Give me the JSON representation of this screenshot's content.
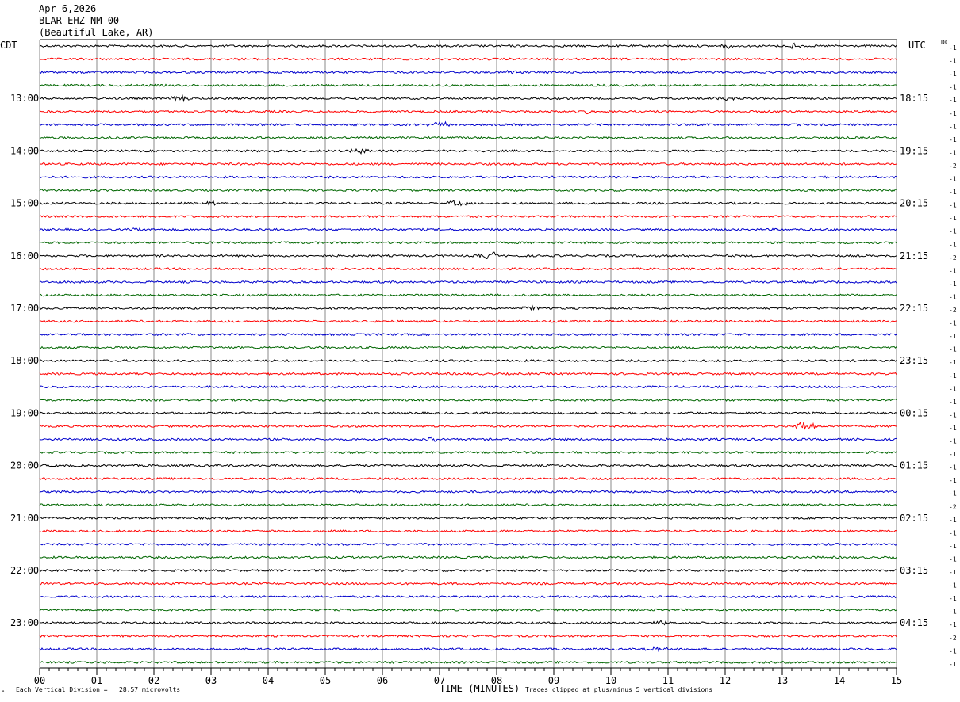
{
  "header": {
    "date": "Apr 6,2026",
    "station": "BLAR EHZ NM 00",
    "location": "(Beautiful Lake, AR)"
  },
  "left_tz": "CDT",
  "right_tz": "UTC",
  "dc_label": "DC",
  "footer": {
    "scale_note": "Each Vertical Division =   28.57 microvolts",
    "xlabel": "TIME (MINUTES)",
    "clip_note": "Traces clipped at plus/minus 5 vertical divisions",
    "corner_mark": "ᴬ"
  },
  "colors": {
    "cycle": [
      "#000000",
      "#ff0000",
      "#0000cc",
      "#006600"
    ],
    "grid": "#000000"
  },
  "chart_data": {
    "type": "line",
    "title": "",
    "xlabel": "TIME (MINUTES)",
    "x_ticks": [
      "00",
      "01",
      "02",
      "03",
      "04",
      "05",
      "06",
      "07",
      "08",
      "09",
      "10",
      "11",
      "12",
      "13",
      "14",
      "15"
    ],
    "xlim": [
      0,
      15
    ],
    "trace_interval_minutes": 15,
    "left_hour_labels": [
      "13:00",
      "14:00",
      "15:00",
      "16:00",
      "17:00",
      "18:00",
      "19:00",
      "20:00",
      "21:00",
      "22:00",
      "23:00"
    ],
    "right_hour_labels": [
      "18:15",
      "19:15",
      "20:15",
      "21:15",
      "22:15",
      "23:15",
      "00:15",
      "01:15",
      "02:15",
      "03:15",
      "04:15"
    ],
    "dc_offsets": [
      -1,
      -1,
      -1,
      -1,
      -1,
      -1,
      -1,
      -1,
      -1,
      -2,
      -1,
      -1,
      -1,
      -1,
      -1,
      -1,
      -2,
      -1,
      -1,
      -1,
      -2,
      -1,
      -1,
      -1,
      -1,
      -1,
      -1,
      -1,
      -1,
      -1,
      -1,
      -1,
      -1,
      -1,
      -1,
      -2,
      -1,
      -1,
      -1,
      -1,
      -1,
      -1,
      -1,
      -1,
      -1,
      -2,
      -1,
      -1
    ],
    "events": [
      {
        "trace": 0,
        "minute": 12.0,
        "amp": 3
      },
      {
        "trace": 0,
        "minute": 13.2,
        "amp": 3
      },
      {
        "trace": 2,
        "minute": 8.3,
        "amp": 3
      },
      {
        "trace": 4,
        "minute": 2.5,
        "amp": 4
      },
      {
        "trace": 4,
        "minute": 12.0,
        "amp": 3
      },
      {
        "trace": 5,
        "minute": 9.6,
        "amp": 3
      },
      {
        "trace": 6,
        "minute": 7.0,
        "amp": 4
      },
      {
        "trace": 8,
        "minute": 5.6,
        "amp": 4
      },
      {
        "trace": 12,
        "minute": 3.0,
        "amp": 3
      },
      {
        "trace": 12,
        "minute": 7.3,
        "amp": 4
      },
      {
        "trace": 14,
        "minute": 1.8,
        "amp": 3
      },
      {
        "trace": 16,
        "minute": 7.9,
        "amp": 6
      },
      {
        "trace": 20,
        "minute": 8.6,
        "amp": 3
      },
      {
        "trace": 29,
        "minute": 13.4,
        "amp": 7
      },
      {
        "trace": 30,
        "minute": 6.9,
        "amp": 3
      },
      {
        "trace": 44,
        "minute": 10.8,
        "amp": 3
      },
      {
        "trace": 46,
        "minute": 10.8,
        "amp": 3
      }
    ]
  }
}
